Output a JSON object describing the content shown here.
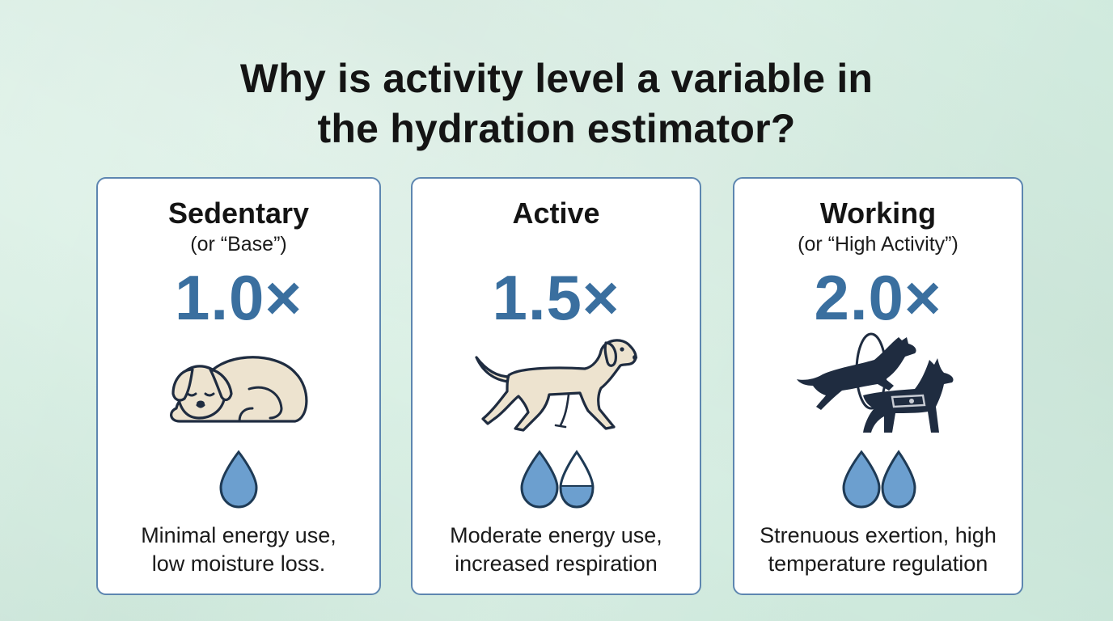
{
  "title": {
    "line1": "Why is activity level a variable in",
    "line2": "the hydration estimator?"
  },
  "cards": [
    {
      "title": "Sedentary",
      "subtitle": "(or “Base”)",
      "multiplier": "1.0×",
      "illustration": "sleeping-dog-icon",
      "drops": "one full water drop",
      "desc_line1": "Minimal energy use,",
      "desc_line2": "low moisture loss."
    },
    {
      "title": "Active",
      "subtitle": "",
      "multiplier": "1.5×",
      "illustration": "walking-dog-icon",
      "drops": "one full and one half water drop",
      "desc_line1": "Moderate energy use,",
      "desc_line2": "increased respiration"
    },
    {
      "title": "Working",
      "subtitle": "(or “High Activity”)",
      "multiplier": "2.0×",
      "illustration": "working-dogs-icon",
      "drops": "two full water drops",
      "desc_line1": "Strenuous exertion, high",
      "desc_line2": "temperature regulation"
    }
  ],
  "colors": {
    "accent": "#3a6f9f",
    "card_border": "#5d86b0",
    "drop_fill": "#6c9fcf",
    "drop_stroke": "#1e3a55",
    "dog_fill": "#ede3cf",
    "dog_dark": "#1f2c40",
    "background": "#d6eee2"
  }
}
